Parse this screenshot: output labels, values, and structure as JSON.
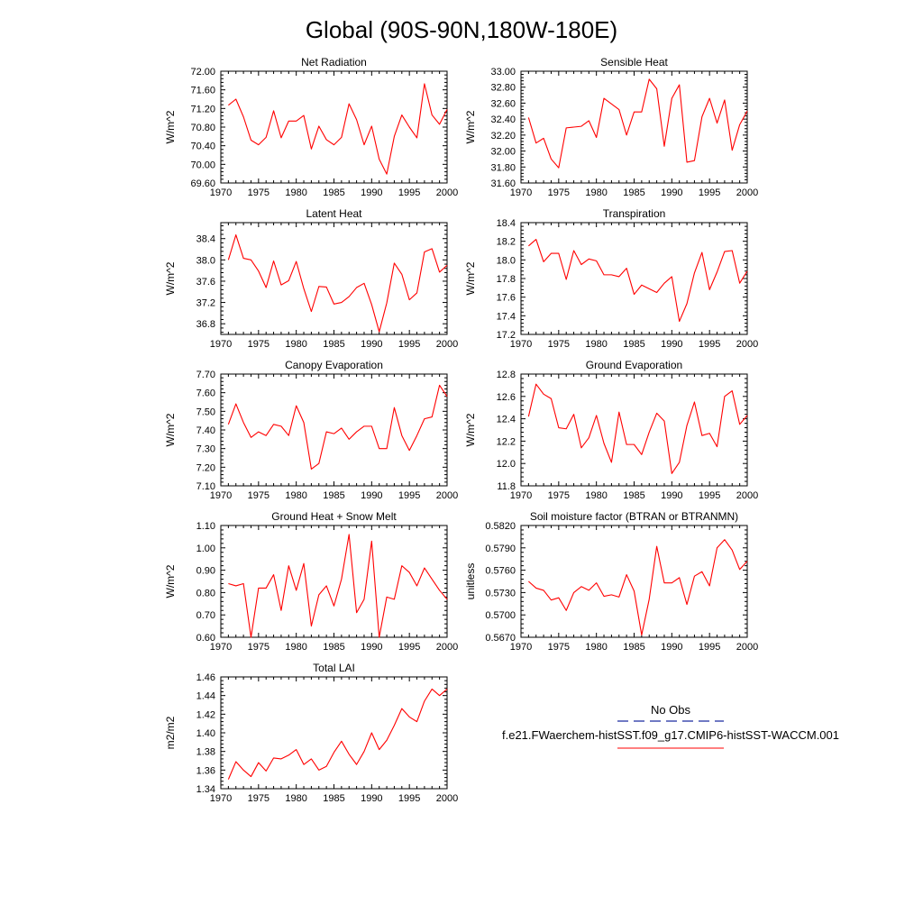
{
  "figure": {
    "title": "Global (90S-90N,180W-180E)",
    "line_color": "#ff0000",
    "obs_color": "#1a2aa0"
  },
  "legend": {
    "obs_label": "No Obs",
    "model_label": "f.e21.FWaerchem-histSST.f09_g17.CMIP6-histSST-WACCM.001",
    "obs_line_color": "#1a2aa0",
    "model_line_color": "#ff0000"
  },
  "chart_data": [
    {
      "type": "line",
      "title": "Net Radiation",
      "xlabel": "",
      "ylabel": "W/m^2",
      "x": [
        1971,
        1972,
        1973,
        1974,
        1975,
        1976,
        1977,
        1978,
        1979,
        1980,
        1981,
        1982,
        1983,
        1984,
        1985,
        1986,
        1987,
        1988,
        1989,
        1990,
        1991,
        1992,
        1993,
        1994,
        1995,
        1996,
        1997,
        1998,
        1999,
        2000
      ],
      "series": [
        {
          "values": [
            71.27,
            71.4,
            71.02,
            70.52,
            70.42,
            70.58,
            71.15,
            70.57,
            70.93,
            70.93,
            71.05,
            70.33,
            70.82,
            70.53,
            70.42,
            70.58,
            71.3,
            70.96,
            70.42,
            70.82,
            70.11,
            69.79,
            70.6,
            71.06,
            70.8,
            70.57,
            71.73,
            71.06,
            70.86,
            71.18
          ]
        }
      ],
      "xlim": [
        1970,
        2000
      ],
      "ylim": [
        69.6,
        72.0
      ],
      "xticks": [
        "1970",
        "1975",
        "1980",
        "1985",
        "1990",
        "1995",
        "2000"
      ],
      "yticks": [
        "69.60",
        "70.00",
        "70.40",
        "70.80",
        "71.20",
        "71.60",
        "72.00"
      ]
    },
    {
      "type": "line",
      "title": "Sensible Heat",
      "xlabel": "",
      "ylabel": "W/m^2",
      "x": [
        1971,
        1972,
        1973,
        1974,
        1975,
        1976,
        1977,
        1978,
        1979,
        1980,
        1981,
        1982,
        1983,
        1984,
        1985,
        1986,
        1987,
        1988,
        1989,
        1990,
        1991,
        1992,
        1993,
        1994,
        1995,
        1996,
        1997,
        1998,
        1999,
        2000
      ],
      "series": [
        {
          "values": [
            32.42,
            32.1,
            32.16,
            31.9,
            31.79,
            32.29,
            32.3,
            32.31,
            32.38,
            32.17,
            32.66,
            32.59,
            32.52,
            32.2,
            32.49,
            32.49,
            32.9,
            32.78,
            32.06,
            32.66,
            32.83,
            31.86,
            31.88,
            32.43,
            32.66,
            32.35,
            32.64,
            32.01,
            32.33,
            32.5
          ]
        }
      ],
      "xlim": [
        1970,
        2000
      ],
      "ylim": [
        31.6,
        33.0
      ],
      "xticks": [
        "1970",
        "1975",
        "1980",
        "1985",
        "1990",
        "1995",
        "2000"
      ],
      "yticks": [
        "31.60",
        "31.80",
        "32.00",
        "32.20",
        "32.40",
        "32.60",
        "32.80",
        "33.00"
      ]
    },
    {
      "type": "line",
      "title": "Latent Heat",
      "xlabel": "",
      "ylabel": "W/m^2",
      "x": [
        1971,
        1972,
        1973,
        1974,
        1975,
        1976,
        1977,
        1978,
        1979,
        1980,
        1981,
        1982,
        1983,
        1984,
        1985,
        1986,
        1987,
        1988,
        1989,
        1990,
        1991,
        1992,
        1993,
        1994,
        1995,
        1996,
        1997,
        1998,
        1999,
        2000
      ],
      "series": [
        {
          "values": [
            38.0,
            38.47,
            38.03,
            38.0,
            37.79,
            37.48,
            37.98,
            37.53,
            37.61,
            37.97,
            37.46,
            37.03,
            37.5,
            37.49,
            37.17,
            37.2,
            37.31,
            37.48,
            37.56,
            37.16,
            36.65,
            37.19,
            37.94,
            37.73,
            37.25,
            37.38,
            38.15,
            38.21,
            37.77,
            37.9
          ]
        }
      ],
      "xlim": [
        1970,
        2000
      ],
      "ylim": [
        36.6,
        38.7
      ],
      "xticks": [
        "1970",
        "1975",
        "1980",
        "1985",
        "1990",
        "1995",
        "2000"
      ],
      "yticks": [
        "36.8",
        "37.2",
        "37.6",
        "38.0",
        "38.4"
      ]
    },
    {
      "type": "line",
      "title": "Transpiration",
      "xlabel": "",
      "ylabel": "W/m^2",
      "x": [
        1971,
        1972,
        1973,
        1974,
        1975,
        1976,
        1977,
        1978,
        1979,
        1980,
        1981,
        1982,
        1983,
        1984,
        1985,
        1986,
        1987,
        1988,
        1989,
        1990,
        1991,
        1992,
        1993,
        1994,
        1995,
        1996,
        1997,
        1998,
        1999,
        2000
      ],
      "series": [
        {
          "values": [
            18.15,
            18.22,
            17.98,
            18.07,
            18.07,
            17.79,
            18.1,
            17.95,
            18.01,
            17.99,
            17.84,
            17.84,
            17.82,
            17.91,
            17.63,
            17.73,
            17.69,
            17.65,
            17.75,
            17.82,
            17.34,
            17.53,
            17.86,
            18.08,
            17.68,
            17.87,
            18.09,
            18.1,
            17.75,
            17.88
          ]
        }
      ],
      "xlim": [
        1970,
        2000
      ],
      "ylim": [
        17.2,
        18.4
      ],
      "xticks": [
        "1970",
        "1975",
        "1980",
        "1985",
        "1990",
        "1995",
        "2000"
      ],
      "yticks": [
        "17.2",
        "17.4",
        "17.6",
        "17.8",
        "18.0",
        "18.2",
        "18.4"
      ]
    },
    {
      "type": "line",
      "title": "Canopy Evaporation",
      "xlabel": "",
      "ylabel": "W/m^2",
      "x": [
        1971,
        1972,
        1973,
        1974,
        1975,
        1976,
        1977,
        1978,
        1979,
        1980,
        1981,
        1982,
        1983,
        1984,
        1985,
        1986,
        1987,
        1988,
        1989,
        1990,
        1991,
        1992,
        1993,
        1994,
        1995,
        1996,
        1997,
        1998,
        1999,
        2000
      ],
      "series": [
        {
          "values": [
            7.43,
            7.54,
            7.44,
            7.36,
            7.39,
            7.37,
            7.43,
            7.42,
            7.37,
            7.53,
            7.44,
            7.19,
            7.22,
            7.39,
            7.38,
            7.41,
            7.35,
            7.39,
            7.42,
            7.42,
            7.3,
            7.3,
            7.52,
            7.37,
            7.29,
            7.37,
            7.46,
            7.47,
            7.64,
            7.58
          ]
        }
      ],
      "xlim": [
        1970,
        2000
      ],
      "ylim": [
        7.1,
        7.7
      ],
      "xticks": [
        "1970",
        "1975",
        "1980",
        "1985",
        "1990",
        "1995",
        "2000"
      ],
      "yticks": [
        "7.10",
        "7.20",
        "7.30",
        "7.40",
        "7.50",
        "7.60",
        "7.70"
      ]
    },
    {
      "type": "line",
      "title": "Ground Evaporation",
      "xlabel": "",
      "ylabel": "W/m^2",
      "x": [
        1971,
        1972,
        1973,
        1974,
        1975,
        1976,
        1977,
        1978,
        1979,
        1980,
        1981,
        1982,
        1983,
        1984,
        1985,
        1986,
        1987,
        1988,
        1989,
        1990,
        1991,
        1992,
        1993,
        1994,
        1995,
        1996,
        1997,
        1998,
        1999,
        2000
      ],
      "series": [
        {
          "values": [
            12.42,
            12.71,
            12.62,
            12.58,
            12.32,
            12.31,
            12.44,
            12.14,
            12.23,
            12.43,
            12.18,
            12.01,
            12.46,
            12.17,
            12.17,
            12.08,
            12.28,
            12.45,
            12.38,
            11.91,
            12.01,
            12.34,
            12.55,
            12.25,
            12.27,
            12.15,
            12.6,
            12.65,
            12.35,
            12.43
          ]
        }
      ],
      "xlim": [
        1970,
        2000
      ],
      "ylim": [
        11.8,
        12.8
      ],
      "xticks": [
        "1970",
        "1975",
        "1980",
        "1985",
        "1990",
        "1995",
        "2000"
      ],
      "yticks": [
        "11.8",
        "12.0",
        "12.2",
        "12.4",
        "12.6",
        "12.8"
      ]
    },
    {
      "type": "line",
      "title": "Ground Heat + Snow Melt",
      "xlabel": "",
      "ylabel": "W/m^2",
      "x": [
        1971,
        1972,
        1973,
        1974,
        1975,
        1976,
        1977,
        1978,
        1979,
        1980,
        1981,
        1982,
        1983,
        1984,
        1985,
        1986,
        1987,
        1988,
        1989,
        1990,
        1991,
        1992,
        1993,
        1994,
        1995,
        1996,
        1997,
        1998,
        1999,
        2000
      ],
      "series": [
        {
          "values": [
            0.84,
            0.83,
            0.84,
            0.6,
            0.82,
            0.82,
            0.88,
            0.72,
            0.92,
            0.81,
            0.93,
            0.65,
            0.79,
            0.83,
            0.74,
            0.86,
            1.06,
            0.71,
            0.77,
            1.03,
            0.6,
            0.78,
            0.77,
            0.92,
            0.89,
            0.83,
            0.91,
            0.86,
            0.81,
            0.77
          ]
        }
      ],
      "xlim": [
        1970,
        2000
      ],
      "ylim": [
        0.6,
        1.1
      ],
      "xticks": [
        "1970",
        "1975",
        "1980",
        "1985",
        "1990",
        "1995",
        "2000"
      ],
      "yticks": [
        "0.60",
        "0.70",
        "0.80",
        "0.90",
        "1.00",
        "1.10"
      ]
    },
    {
      "type": "line",
      "title": "Soil moisture factor (BTRAN or BTRANMN)",
      "xlabel": "",
      "ylabel": "unitless",
      "x": [
        1971,
        1972,
        1973,
        1974,
        1975,
        1976,
        1977,
        1978,
        1979,
        1980,
        1981,
        1982,
        1983,
        1984,
        1985,
        1986,
        1987,
        1988,
        1989,
        1990,
        1991,
        1992,
        1993,
        1994,
        1995,
        1996,
        1997,
        1998,
        1999,
        2000
      ],
      "series": [
        {
          "values": [
            0.5745,
            0.5736,
            0.5733,
            0.572,
            0.5723,
            0.5706,
            0.573,
            0.5738,
            0.5733,
            0.5743,
            0.5725,
            0.5727,
            0.5724,
            0.5754,
            0.5732,
            0.5673,
            0.5721,
            0.5792,
            0.5743,
            0.5743,
            0.575,
            0.5714,
            0.5752,
            0.5758,
            0.5739,
            0.579,
            0.5801,
            0.5787,
            0.5761,
            0.5772
          ]
        }
      ],
      "xlim": [
        1970,
        2000
      ],
      "ylim": [
        0.567,
        0.582
      ],
      "xticks": [
        "1970",
        "1975",
        "1980",
        "1985",
        "1990",
        "1995",
        "2000"
      ],
      "yticks": [
        "0.5670",
        "0.5700",
        "0.5730",
        "0.5760",
        "0.5790",
        "0.5820"
      ]
    },
    {
      "type": "line",
      "title": "Total LAI",
      "xlabel": "",
      "ylabel": "m2/m2",
      "x": [
        1971,
        1972,
        1973,
        1974,
        1975,
        1976,
        1977,
        1978,
        1979,
        1980,
        1981,
        1982,
        1983,
        1984,
        1985,
        1986,
        1987,
        1988,
        1989,
        1990,
        1991,
        1992,
        1993,
        1994,
        1995,
        1996,
        1997,
        1998,
        1999,
        2000
      ],
      "series": [
        {
          "values": [
            1.35,
            1.369,
            1.36,
            1.353,
            1.368,
            1.359,
            1.373,
            1.372,
            1.376,
            1.382,
            1.366,
            1.372,
            1.36,
            1.364,
            1.379,
            1.391,
            1.377,
            1.366,
            1.38,
            1.4,
            1.382,
            1.392,
            1.408,
            1.426,
            1.417,
            1.412,
            1.434,
            1.447,
            1.44,
            1.447
          ]
        }
      ],
      "xlim": [
        1970,
        2000
      ],
      "ylim": [
        1.34,
        1.46
      ],
      "xticks": [
        "1970",
        "1975",
        "1980",
        "1985",
        "1990",
        "1995",
        "2000"
      ],
      "yticks": [
        "1.34",
        "1.36",
        "1.38",
        "1.40",
        "1.42",
        "1.44",
        "1.46"
      ]
    }
  ]
}
